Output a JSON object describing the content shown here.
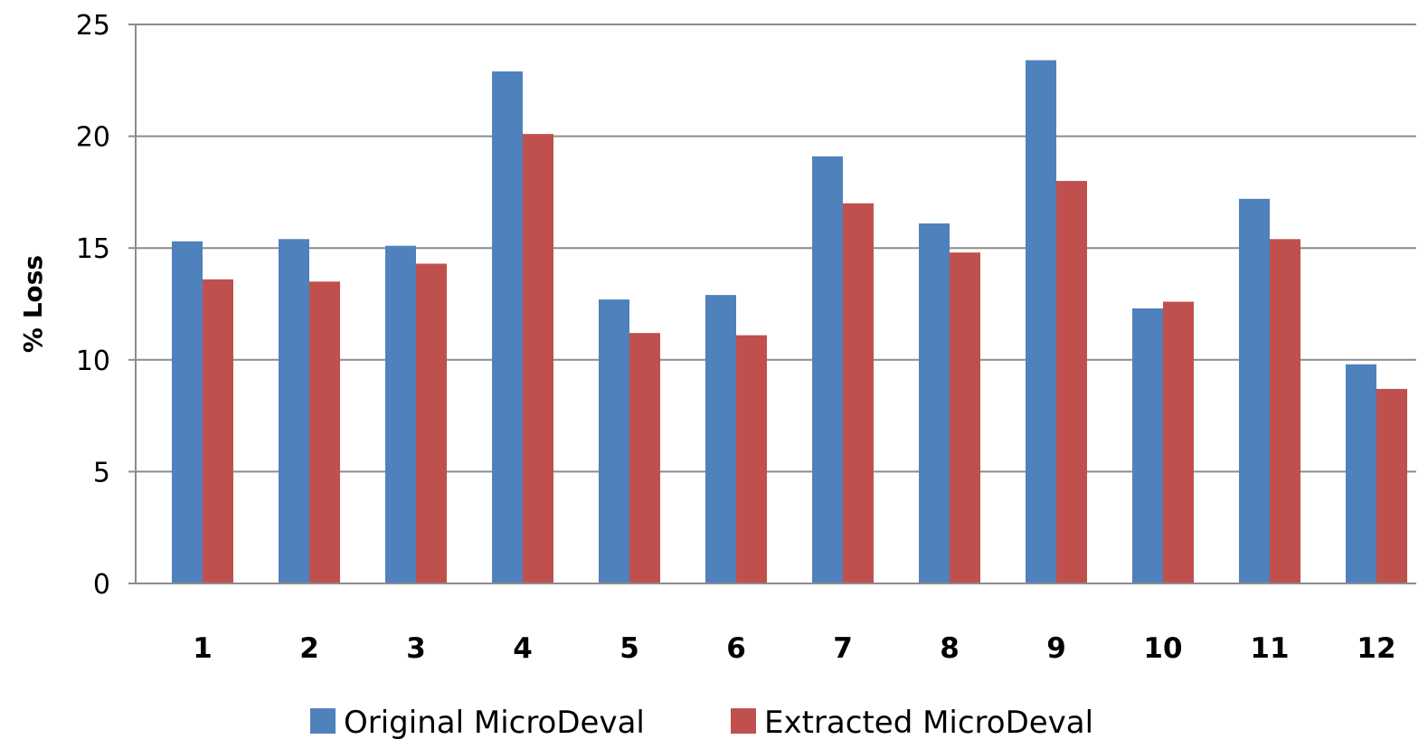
{
  "chart_data": {
    "type": "bar",
    "title": "",
    "xlabel": "",
    "ylabel": "% Loss",
    "ylim": [
      0,
      25
    ],
    "yticks": [
      0,
      5,
      10,
      15,
      20,
      25
    ],
    "grid": true,
    "legend_position": "bottom",
    "categories": [
      "1",
      "2",
      "3",
      "4",
      "5",
      "6",
      "7",
      "8",
      "9",
      "10",
      "11",
      "12"
    ],
    "series": [
      {
        "name": "Original MicroDeval",
        "color": "#4F81BD",
        "values": [
          15.3,
          15.4,
          15.1,
          22.9,
          12.7,
          12.9,
          19.1,
          16.1,
          23.4,
          12.3,
          17.2,
          9.8
        ]
      },
      {
        "name": "Extracted MicroDeval",
        "color": "#C0504D",
        "values": [
          13.6,
          13.5,
          14.3,
          20.1,
          11.2,
          11.1,
          17.0,
          14.8,
          18.0,
          12.6,
          15.4,
          8.7
        ]
      }
    ]
  }
}
